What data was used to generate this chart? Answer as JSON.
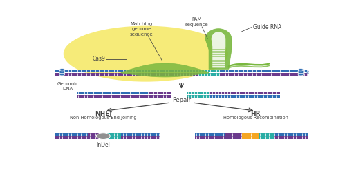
{
  "bg_color": "#ffffff",
  "dna_blue": "#2e6db4",
  "dna_purple": "#6b3a8c",
  "dna_teal": "#2aada5",
  "guide_rna_green": "#7ab840",
  "cas9_yellow": "#f5e96a",
  "indel_gray": "#909090",
  "hr_orange": "#f5a623",
  "text_dark": "#444444",
  "labels": {
    "cas9": "Cas9",
    "genomic_dna": "Genomic\nDNA",
    "matching": "Matching\ngenome\nsequence",
    "pam": "PAM\nsequence",
    "guide_rna": "Guide RNA",
    "repair": "Repair",
    "nhej": "NHEJ",
    "nhej_sub": "Non-Homologous End Joining",
    "hr": "HR",
    "hr_sub": "Homologous Recombination",
    "indel": "InDel"
  },
  "figsize": [
    5.12,
    2.63
  ],
  "dpi": 100
}
